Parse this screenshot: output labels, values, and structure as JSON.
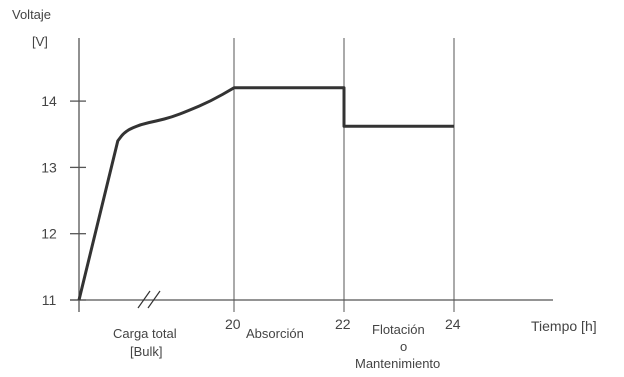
{
  "chart_data": {
    "type": "line",
    "ylabel_line1": "Voltaje",
    "ylabel_line2": "[V]",
    "xlabel": "Tiempo [h]",
    "y_ticks": [
      "11",
      "12",
      "13",
      "14"
    ],
    "x_ticks": [
      "20",
      "22",
      "24"
    ],
    "phase_labels": {
      "bulk_line1": "Carga total",
      "bulk_line2": "[Bulk]",
      "absorcion": "Absorción",
      "flotacion_line1": "Flotación",
      "flotacion_line2": "o",
      "flotacion_line3": "Mantenimiento"
    },
    "ylim": [
      11,
      14
    ],
    "axis_break": "//",
    "grid": "vertical lines at 20, 22, 24",
    "series": [
      {
        "x": [
          0,
          5,
          6,
          8,
          10,
          12,
          14,
          17,
          20,
          22,
          22,
          24
        ],
        "values": [
          11,
          13.4,
          13.55,
          13.65,
          13.7,
          13.76,
          13.85,
          14.0,
          14.2,
          14.2,
          13.62,
          13.62
        ]
      }
    ],
    "colors": {
      "line": "#333333",
      "axis": "#555555",
      "grid": "#555555",
      "text": "#444444"
    }
  }
}
